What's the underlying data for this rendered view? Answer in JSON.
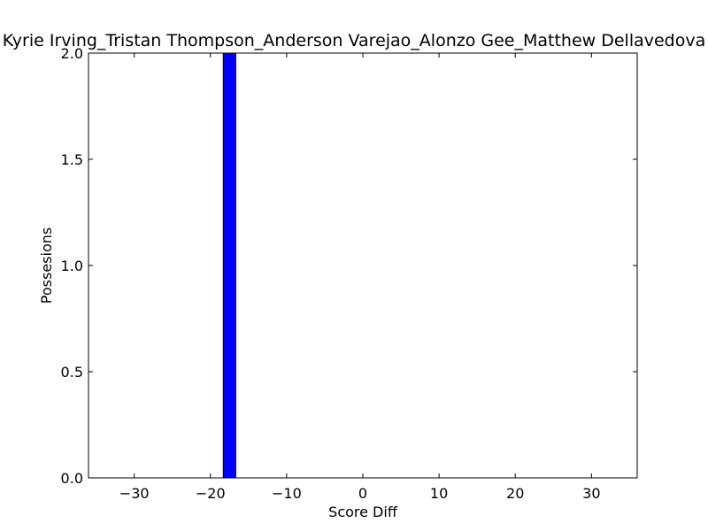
{
  "chart_data": {
    "type": "bar",
    "title": "Kyrie Irving_Tristan Thompson_Anderson Varejao_Alonzo Gee_Matthew Dellavedova",
    "xlabel": "Score Diff",
    "ylabel": "Possesions",
    "xlim": [
      -36,
      36
    ],
    "ylim": [
      0,
      2
    ],
    "bin_width": 1.636,
    "bars": [
      {
        "x": -17.5,
        "value": 2.0
      },
      {
        "x": -33.0,
        "value": 0.0
      },
      {
        "x": 33.0,
        "value": 0.0
      }
    ],
    "x_ticks": [
      "−30",
      "−20",
      "−10",
      "0",
      "10",
      "20",
      "30"
    ],
    "x_tick_values": [
      -30,
      -20,
      -10,
      0,
      10,
      20,
      30
    ],
    "y_ticks": [
      "0.0",
      "0.5",
      "1.0",
      "1.5",
      "2.0"
    ],
    "y_tick_values": [
      0,
      0.5,
      1.0,
      1.5,
      2.0
    ],
    "bar_color": "#0000ff",
    "grid": false,
    "legend": "none"
  }
}
